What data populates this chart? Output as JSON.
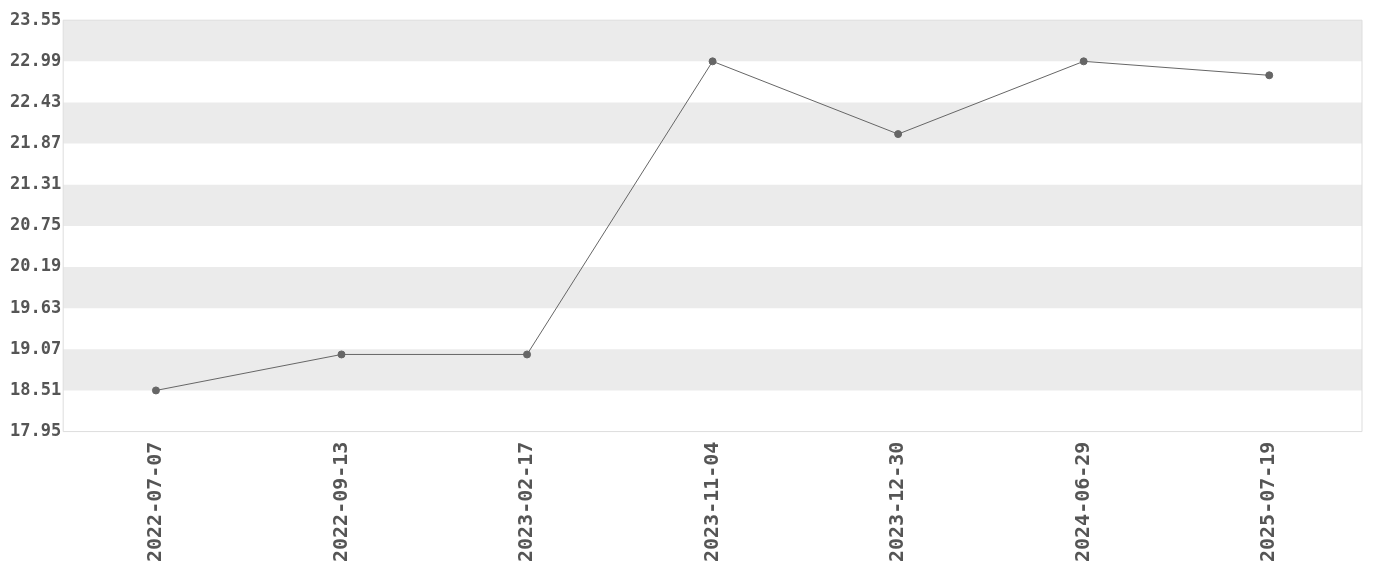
{
  "chart_data": {
    "type": "line",
    "categories": [
      "2022-07-07",
      "2022-09-13",
      "2023-02-17",
      "2023-11-04",
      "2023-12-30",
      "2024-06-29",
      "2025-07-19"
    ],
    "series": [
      {
        "color": "#666666",
        "values": [
          18.51,
          19.0,
          19.0,
          22.99,
          22.0,
          22.99,
          22.8
        ]
      }
    ],
    "ylim": [
      17.95,
      23.55
    ],
    "yticks": [
      17.95,
      18.51,
      19.07,
      19.63,
      20.19,
      20.75,
      21.31,
      21.87,
      22.43,
      22.99,
      23.55
    ],
    "bands": [
      {
        "axis": "y",
        "from": 22.99,
        "to": 23.55,
        "color": "#ebebeb"
      },
      {
        "axis": "y",
        "from": 21.87,
        "to": 22.43,
        "color": "#ebebeb"
      },
      {
        "axis": "y",
        "from": 20.75,
        "to": 21.31,
        "color": "#ebebeb"
      },
      {
        "axis": "y",
        "from": 19.63,
        "to": 20.19,
        "color": "#ebebeb"
      },
      {
        "axis": "y",
        "from": 18.51,
        "to": 19.07,
        "color": "#ebebeb"
      }
    ],
    "legend": false,
    "marker": "circle",
    "line_style": "solid"
  }
}
